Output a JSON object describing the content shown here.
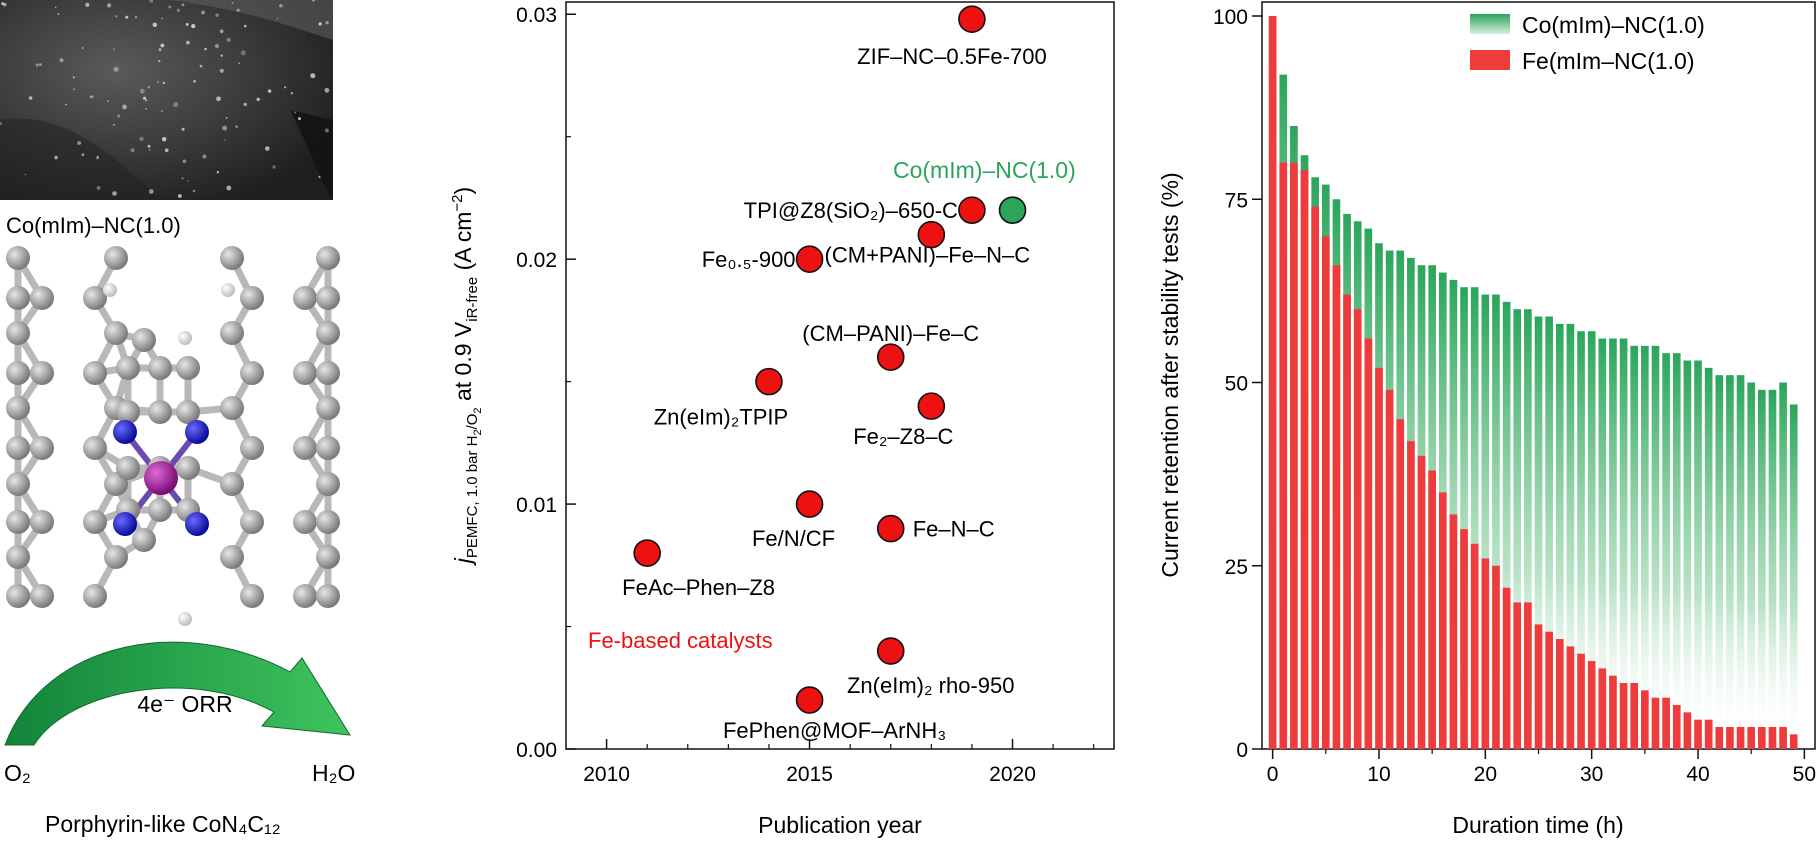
{
  "panel_left": {
    "micrograph_caption": "Co(mIm)–NC(1.0)",
    "schematic": {
      "reaction_label": "4e⁻ ORR",
      "reactant": "O₂",
      "product": "H₂O",
      "caption": "Porphyrin-like CoN₄C₁₂"
    },
    "colors": {
      "carbon": "#9a9a9a",
      "nitrogen": "#1a1ad0",
      "cobalt": "#b0249e",
      "hydrogen": "#e8e8e8",
      "arrow": "#1d9a3a"
    }
  },
  "chart_data": [
    {
      "type": "scatter",
      "xlabel": "Publication year",
      "ylabel": "j_PEMFC, 1.0 bar H₂/O₂ at 0.9 V_iR-free (A cm⁻²)",
      "ylabel_parts": {
        "j": "j",
        "sub_pemfc": "PEMFC, 1.0 bar H",
        "sub_2a": "2",
        "sub_slash": "/O",
        "sub_2b": "2",
        "mid": " at 0.9 V",
        "sub_ir": "iR-free",
        "tail": " (A cm",
        "sup": "−2",
        "close": ")"
      },
      "xlim": [
        2009,
        2022.5
      ],
      "ylim": [
        0,
        0.0305
      ],
      "xticks": [
        2010,
        2015,
        2020
      ],
      "yticks": [
        0.0,
        0.01,
        0.02,
        0.03
      ],
      "ytick_labels": [
        "0.00",
        "0.01",
        "0.02",
        "0.03"
      ],
      "annotation": "Fe-based catalysts",
      "annotation_color": "#ee1111",
      "highlight_label": "Co(mIm)–NC(1.0)",
      "highlight_color": "#2aa55a",
      "marker_color": "#ee1111",
      "points": [
        {
          "year": 2019,
          "value": 0.0298,
          "label": "ZIF–NC–0.5Fe-700",
          "group": "Fe"
        },
        {
          "year": 2019,
          "value": 0.022,
          "label": "TPI@Z8(SiO₂)–650-C",
          "group": "Fe"
        },
        {
          "year": 2018,
          "value": 0.021,
          "label": "(CM+PANI)–Fe–N–C",
          "group": "Fe"
        },
        {
          "year": 2015,
          "value": 0.02,
          "label": "Fe₀.₅-900",
          "group": "Fe"
        },
        {
          "year": 2017,
          "value": 0.016,
          "label": "(CM–PANI)–Fe–C",
          "group": "Fe"
        },
        {
          "year": 2014,
          "value": 0.015,
          "label": "Zn(eIm)₂TPIP",
          "group": "Fe"
        },
        {
          "year": 2018,
          "value": 0.014,
          "label": "Fe₂–Z8–C",
          "group": "Fe"
        },
        {
          "year": 2015,
          "value": 0.01,
          "label": "Fe/N/CF",
          "group": "Fe"
        },
        {
          "year": 2017,
          "value": 0.009,
          "label": "Fe–N–C",
          "group": "Fe"
        },
        {
          "year": 2011,
          "value": 0.008,
          "label": "FeAc–Phen–Z8",
          "group": "Fe"
        },
        {
          "year": 2017,
          "value": 0.004,
          "label": "Zn(eIm)₂ rho-950",
          "group": "Fe"
        },
        {
          "year": 2015,
          "value": 0.002,
          "label": "FePhen@MOF–ArNH₃",
          "group": "Fe"
        },
        {
          "year": 2020,
          "value": 0.022,
          "label": "",
          "group": "Co"
        }
      ]
    },
    {
      "type": "bar",
      "xlabel": "Duration time (h)",
      "ylabel": "Current retention after stability tests (%)",
      "xlim": [
        -1,
        51
      ],
      "ylim": [
        0,
        100
      ],
      "xticks": [
        0,
        10,
        20,
        30,
        40,
        50
      ],
      "yticks": [
        0,
        25,
        50,
        75,
        100
      ],
      "x": [
        0,
        1,
        2,
        3,
        4,
        5,
        6,
        7,
        8,
        9,
        10,
        11,
        12,
        13,
        14,
        15,
        16,
        17,
        18,
        19,
        20,
        21,
        22,
        23,
        24,
        25,
        26,
        27,
        28,
        29,
        30,
        31,
        32,
        33,
        34,
        35,
        36,
        37,
        38,
        39,
        40,
        41,
        42,
        43,
        44,
        45,
        46,
        47,
        48,
        49
      ],
      "series": [
        {
          "name": "Co(mIm)–NC(1.0)",
          "color": "#2aa55a",
          "values": [
            100,
            92,
            85,
            81,
            78,
            77,
            75,
            73,
            72,
            71,
            69,
            68,
            68,
            67,
            66,
            66,
            65,
            64,
            63,
            63,
            62,
            62,
            61,
            60,
            60,
            59,
            59,
            58,
            58,
            57,
            57,
            56,
            56,
            56,
            55,
            55,
            55,
            54,
            54,
            53,
            53,
            52,
            51,
            51,
            51,
            50,
            49,
            49,
            50,
            47
          ]
        },
        {
          "name": "Fe(mIm–NC(1.0)",
          "color": "#ee3b3b",
          "values": [
            100,
            80,
            80,
            79,
            74,
            70,
            66,
            62,
            60,
            56,
            52,
            49,
            45,
            42,
            40,
            38,
            35,
            32,
            30,
            28,
            26,
            25,
            22,
            20,
            20,
            17,
            16,
            15,
            14,
            13,
            12,
            11,
            10,
            9,
            9,
            8,
            7,
            7,
            6,
            5,
            4,
            4,
            3,
            3,
            3,
            3,
            3,
            3,
            3,
            2
          ]
        }
      ]
    }
  ]
}
